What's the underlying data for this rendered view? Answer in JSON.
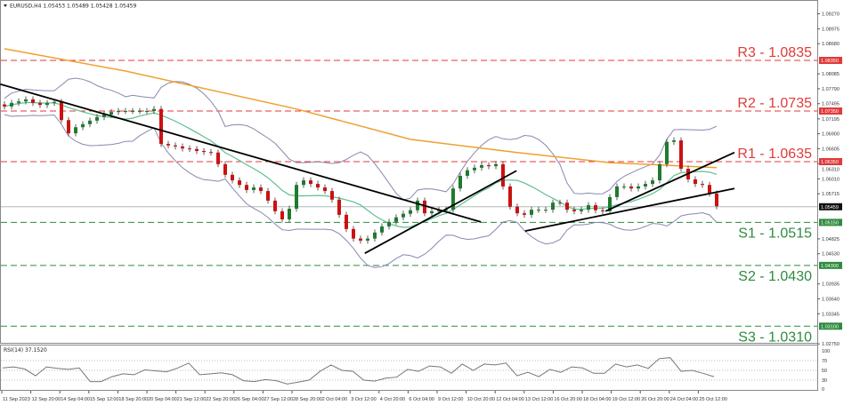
{
  "header": {
    "symbol_info": "EURUSD,H4  1.05453 1.05489 1.05428 1.05459",
    "icon": "triangle-down-icon"
  },
  "rsi_panel": {
    "label": "RSI(14) 37.1520",
    "ticks": [
      "100",
      "70",
      "50",
      "30",
      "0"
    ]
  },
  "colors": {
    "up": "#1e7b2e",
    "down": "#cc1111",
    "sma200": "#f0a030",
    "mid_band": "#5fbf8f",
    "bands": "#8888b0",
    "resistance": "#e03a3a",
    "support": "#2e8b3e",
    "trendline": "#000000"
  },
  "levels": [
    {
      "name": "R3",
      "label": "R3 - 1.0835",
      "price": 1.0835,
      "tag": "1.08350",
      "type": "resistance"
    },
    {
      "name": "R2",
      "label": "R2 - 1.0735",
      "price": 1.0735,
      "tag": "1.07350",
      "type": "resistance"
    },
    {
      "name": "R1",
      "label": "R1 - 1.0635",
      "price": 1.0635,
      "tag": "1.06350",
      "type": "resistance"
    },
    {
      "name": "S1",
      "label": "S1 - 1.0515",
      "price": 1.0515,
      "tag": "1.05150",
      "type": "support"
    },
    {
      "name": "S2",
      "label": "S2 - 1.0430",
      "price": 1.043,
      "tag": "1.04300",
      "type": "support"
    },
    {
      "name": "S3",
      "label": "S3 - 1.0310",
      "price": 1.031,
      "tag": "1.03100",
      "type": "support"
    }
  ],
  "current_price": {
    "price": 1.05459,
    "tag": "1.05459"
  },
  "chart_data": {
    "type": "candlestick",
    "symbol": "EURUSD",
    "timeframe": "H4",
    "ylim": [
      1.026,
      1.0935
    ],
    "y_ticks": [
      "1.09270",
      "1.08975",
      "1.08680",
      "1.08085",
      "1.07790",
      "1.07495",
      "1.07195",
      "1.06900",
      "1.06605",
      "1.06310",
      "1.06010",
      "1.05715",
      "1.04825",
      "1.04530",
      "1.03935",
      "1.03640",
      "1.03345",
      "1.02750"
    ],
    "x_labels": [
      "11 Sep 2023",
      "12 Sep 20:00",
      "14 Sep 04:00",
      "15 Sep 12:00",
      "18 Sep 20:00",
      "20 Sep 04:00",
      "21 Sep 12:00",
      "22 Sep 20:00",
      "26 Sep 04:00",
      "27 Sep 12:00",
      "28 Sep 20:00",
      "2 Oct 04:00",
      "3 Oct 12:00",
      "4 Oct 20:00",
      "6 Oct 04:00",
      "9 Oct 12:00",
      "10 Oct 20:00",
      "12 Oct 04:00",
      "13 Oct 12:00",
      "16 Oct 20:00",
      "18 Oct 04:00",
      "19 Oct 12:00",
      "20 Oct 20:00",
      "24 Oct 04:00",
      "25 Oct 12:00"
    ],
    "closes": [
      1.0744,
      1.0751,
      1.0754,
      1.0758,
      1.0751,
      1.0747,
      1.0751,
      1.0753,
      1.0717,
      1.0691,
      1.0703,
      1.0709,
      1.0716,
      1.0723,
      1.0728,
      1.0733,
      1.0735,
      1.0735,
      1.0735,
      1.0735,
      1.0735,
      1.0739,
      1.067,
      1.0667,
      1.0665,
      1.0661,
      1.066,
      1.0656,
      1.0654,
      1.0653,
      1.063,
      1.0609,
      1.0598,
      1.0589,
      1.0579,
      1.0584,
      1.0577,
      1.0558,
      1.0537,
      1.0521,
      1.0542,
      1.0589,
      1.0598,
      1.0591,
      1.0584,
      1.0577,
      1.056,
      1.053,
      1.0502,
      1.0483,
      1.0479,
      1.0483,
      1.0495,
      1.0507,
      1.0516,
      1.0525,
      1.0532,
      1.0539,
      1.0558,
      1.0533,
      1.0537,
      1.054,
      1.054,
      1.0582,
      1.0607,
      1.0618,
      1.0623,
      1.0628,
      1.0626,
      1.063,
      1.0586,
      1.0546,
      1.0533,
      1.053,
      1.054,
      1.054,
      1.054,
      1.0554,
      1.0554,
      1.054,
      1.0537,
      1.054,
      1.0549,
      1.0539,
      1.0537,
      1.0565,
      1.0586,
      1.0586,
      1.0582,
      1.0586,
      1.0591,
      1.0598,
      1.063,
      1.0674,
      1.0677,
      1.0621,
      1.06,
      1.0591,
      1.0589,
      1.0572,
      1.0547
    ],
    "sma200": [
      [
        0,
        1.0858
      ],
      [
        17,
        1.0814
      ],
      [
        41,
        1.0739
      ],
      [
        57,
        1.0679
      ],
      [
        72,
        1.0653
      ],
      [
        85,
        1.0633
      ],
      [
        100,
        1.0623
      ]
    ],
    "trendlines": [
      [
        [
          -0.6,
          1.0788
        ],
        [
          66.9,
          1.0516
        ]
      ],
      [
        [
          50.6,
          1.0454
        ],
        [
          71.9,
          1.0617
        ]
      ],
      [
        [
          73.1,
          1.0498
        ],
        [
          102.5,
          1.0582
        ]
      ],
      [
        [
          84.4,
          1.0537
        ],
        [
          102.5,
          1.0653
        ]
      ]
    ],
    "rsi": {
      "period": 14,
      "current": 37.152,
      "ylim": [
        0,
        100
      ],
      "levels": [
        70,
        50,
        30
      ],
      "values": [
        55,
        57,
        53,
        39,
        57,
        54,
        52,
        55,
        27,
        27,
        37,
        43,
        41,
        51,
        49,
        47,
        55,
        65,
        41,
        43,
        45,
        41,
        29,
        27,
        31,
        29,
        22,
        26,
        30,
        48,
        61,
        50,
        48,
        30,
        28,
        34,
        36,
        52,
        48,
        59,
        57,
        44,
        63,
        50,
        63,
        61,
        65,
        39,
        46,
        37,
        52,
        46,
        57,
        55,
        44,
        44,
        63,
        57,
        61,
        54,
        74,
        76,
        48,
        50,
        44,
        37
      ]
    }
  }
}
